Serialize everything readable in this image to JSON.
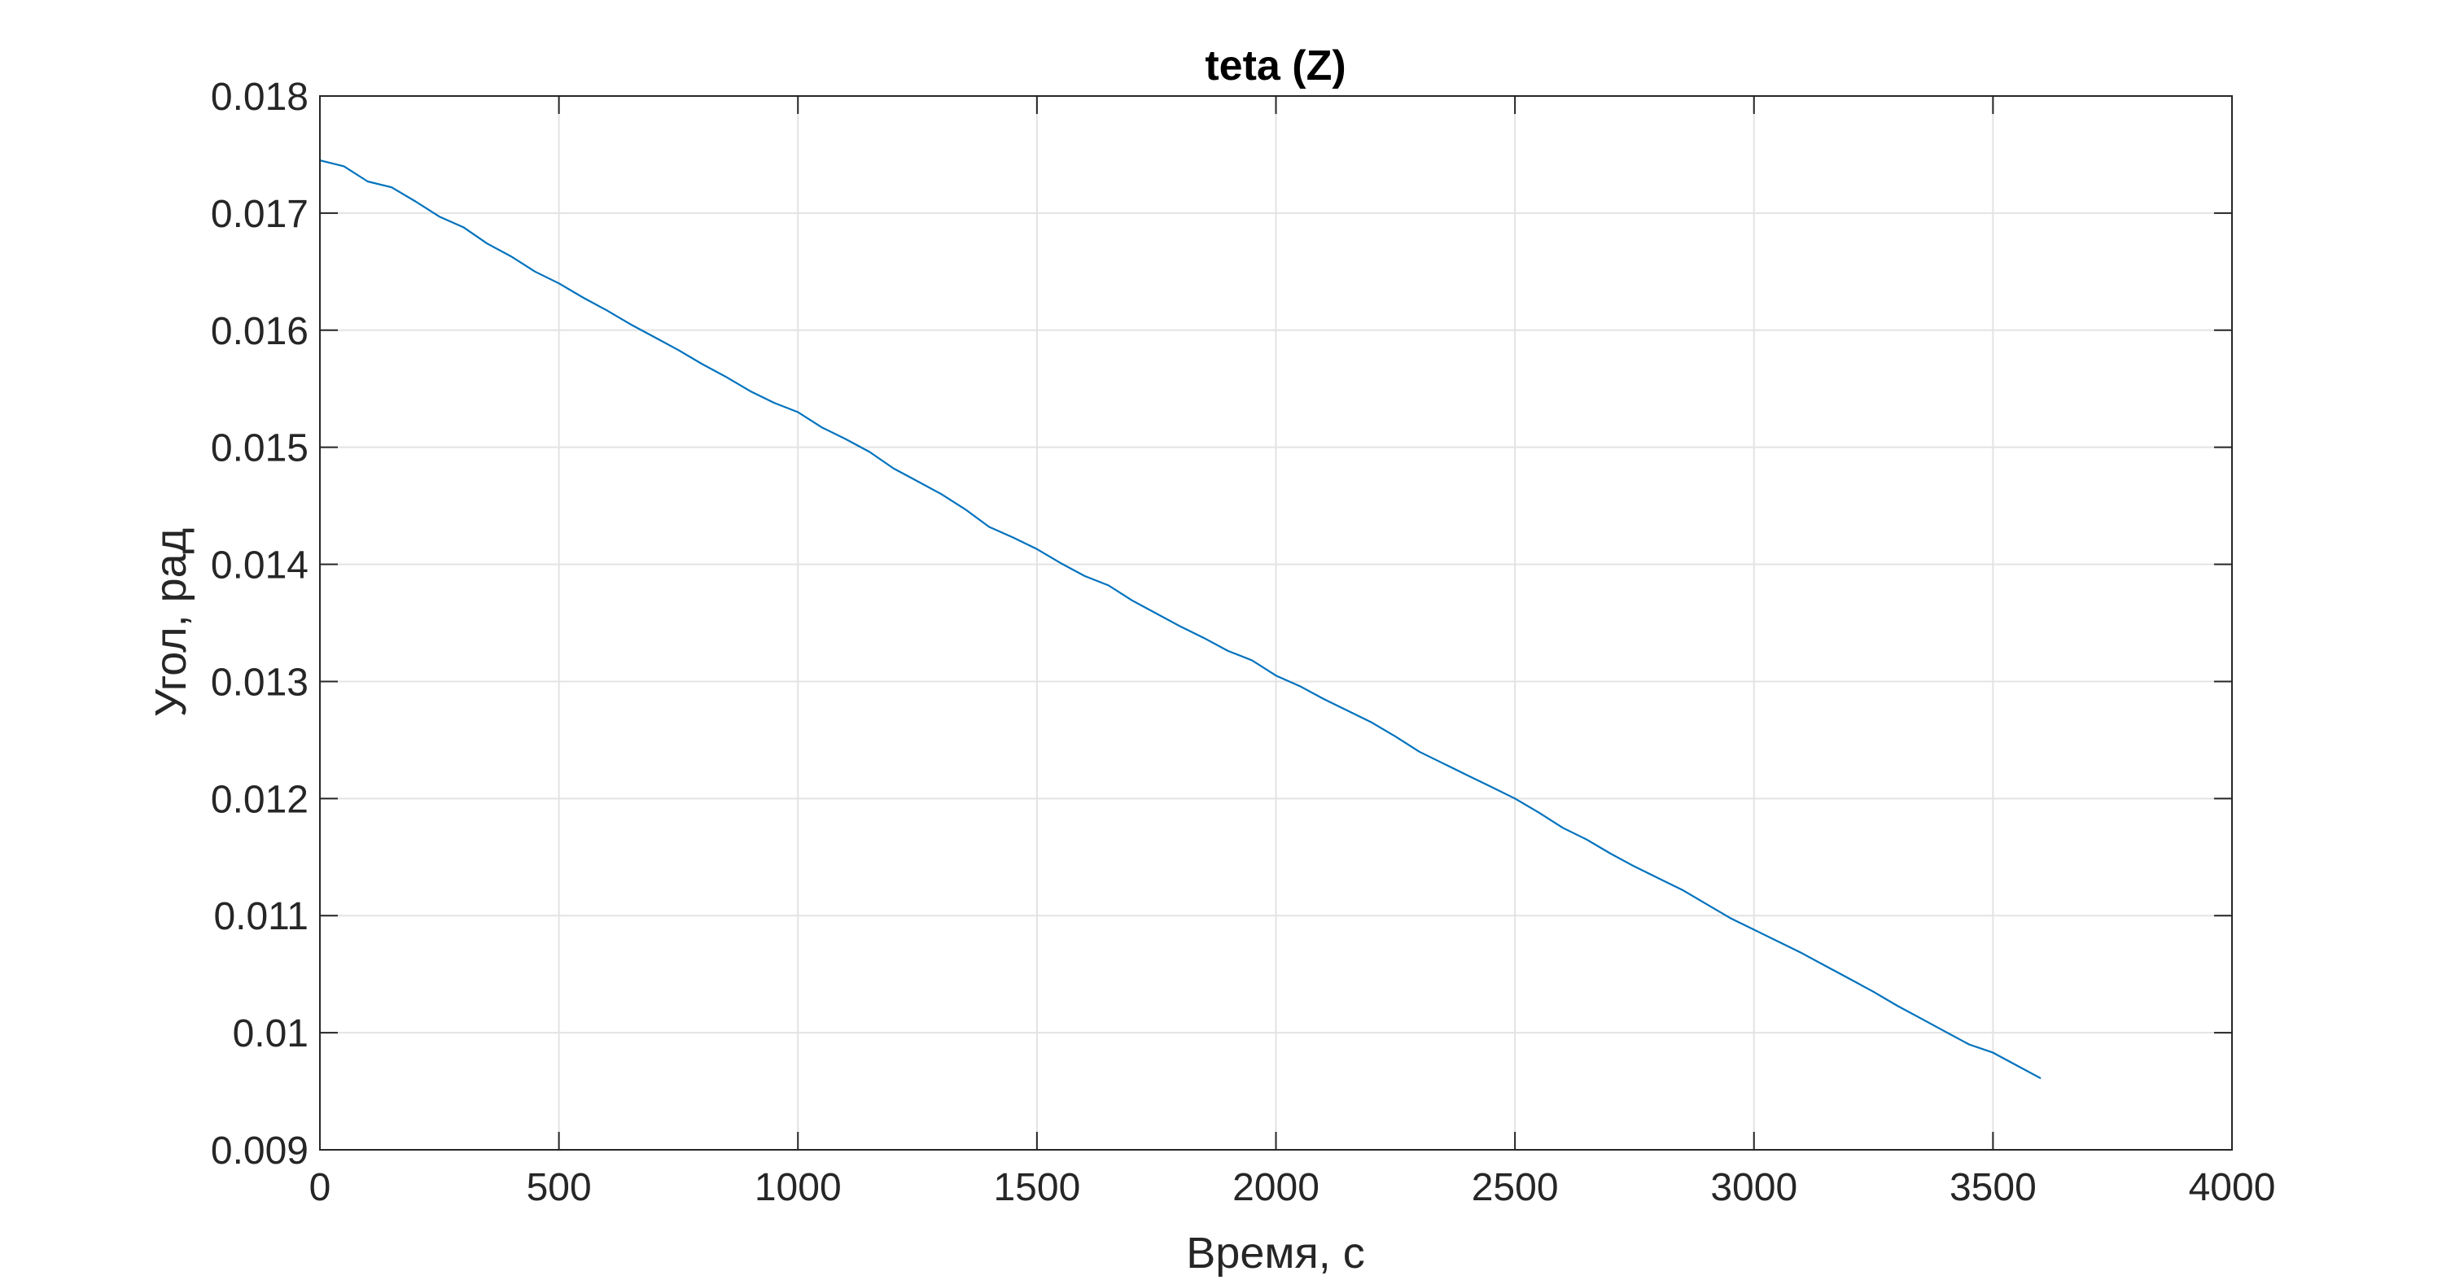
{
  "chart_data": {
    "type": "line",
    "title": "teta (Z)",
    "xlabel": "Время, с",
    "ylabel": "Угол, рад",
    "xlim": [
      0,
      4000
    ],
    "ylim": [
      0.009,
      0.018
    ],
    "grid": true,
    "x_ticks": [
      0,
      500,
      1000,
      1500,
      2000,
      2500,
      3000,
      3500,
      4000
    ],
    "x_tick_labels": [
      "0",
      "500",
      "1000",
      "1500",
      "2000",
      "2500",
      "3000",
      "3500",
      "4000"
    ],
    "y_ticks": [
      0.009,
      0.01,
      0.011,
      0.012,
      0.013,
      0.014,
      0.015,
      0.016,
      0.017,
      0.018
    ],
    "y_tick_labels": [
      "0.009",
      "0.01",
      "0.011",
      "0.012",
      "0.013",
      "0.014",
      "0.015",
      "0.016",
      "0.017",
      "0.018"
    ],
    "series": [
      {
        "color": "#0072bd",
        "x": [
          0,
          50,
          100,
          150,
          200,
          250,
          300,
          350,
          400,
          450,
          500,
          550,
          600,
          650,
          700,
          750,
          800,
          850,
          900,
          950,
          1000,
          1050,
          1100,
          1150,
          1200,
          1250,
          1300,
          1350,
          1400,
          1450,
          1500,
          1550,
          1600,
          1650,
          1700,
          1750,
          1800,
          1850,
          1900,
          1950,
          2000,
          2050,
          2100,
          2150,
          2200,
          2250,
          2300,
          2350,
          2400,
          2450,
          2500,
          2550,
          2600,
          2650,
          2700,
          2750,
          2800,
          2850,
          2900,
          2950,
          3000,
          3050,
          3100,
          3150,
          3200,
          3250,
          3300,
          3350,
          3400,
          3450,
          3500,
          3550,
          3600
        ],
        "y": [
          0.01745,
          0.0174,
          0.01727,
          0.01722,
          0.0171,
          0.01697,
          0.01688,
          0.01674,
          0.01663,
          0.0165,
          0.0164,
          0.01628,
          0.01617,
          0.01605,
          0.01594,
          0.01583,
          0.01571,
          0.0156,
          0.01548,
          0.01538,
          0.0153,
          0.01517,
          0.01507,
          0.01496,
          0.01482,
          0.01471,
          0.0146,
          0.01447,
          0.01432,
          0.01423,
          0.01413,
          0.01401,
          0.0139,
          0.01382,
          0.01369,
          0.01358,
          0.01347,
          0.01337,
          0.01326,
          0.01318,
          0.01305,
          0.01296,
          0.01285,
          0.01275,
          0.01265,
          0.01253,
          0.0124,
          0.0123,
          0.0122,
          0.0121,
          0.012,
          0.01188,
          0.01175,
          0.01165,
          0.01153,
          0.01142,
          0.01132,
          0.01122,
          0.0111,
          0.01098,
          0.01088,
          0.01078,
          0.01068,
          0.01057,
          0.01046,
          0.01035,
          0.01023,
          0.01012,
          0.01001,
          0.0099,
          0.00983,
          0.00972,
          0.00961
        ]
      }
    ]
  }
}
